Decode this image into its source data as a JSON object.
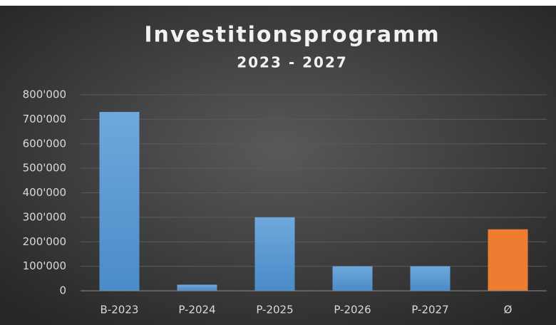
{
  "chart_data": {
    "type": "bar",
    "title": "Investitionsprogramm",
    "subtitle": "2023 - 2027",
    "categories": [
      "B-2023",
      "P-2024",
      "P-2025",
      "P-2026",
      "P-2027",
      "Ø"
    ],
    "values": [
      730000,
      25000,
      300000,
      100000,
      100000,
      251000
    ],
    "colors": [
      "#5b9bd5",
      "#5b9bd5",
      "#5b9bd5",
      "#5b9bd5",
      "#5b9bd5",
      "#ed7d31"
    ],
    "ylim": [
      0,
      800000
    ],
    "yticks": [
      0,
      {
        "value": 100000,
        "label": "100'000"
      },
      {
        "value": 200000,
        "label": "200'000"
      },
      {
        "value": 300000,
        "label": "300'000"
      },
      {
        "value": 400000,
        "label": "400'000"
      },
      {
        "value": 500000,
        "label": "500'000"
      },
      {
        "value": 600000,
        "label": "600'000"
      },
      {
        "value": 700000,
        "label": "700'000"
      },
      {
        "value": 800000,
        "label": "800'000"
      }
    ],
    "grid": true
  }
}
